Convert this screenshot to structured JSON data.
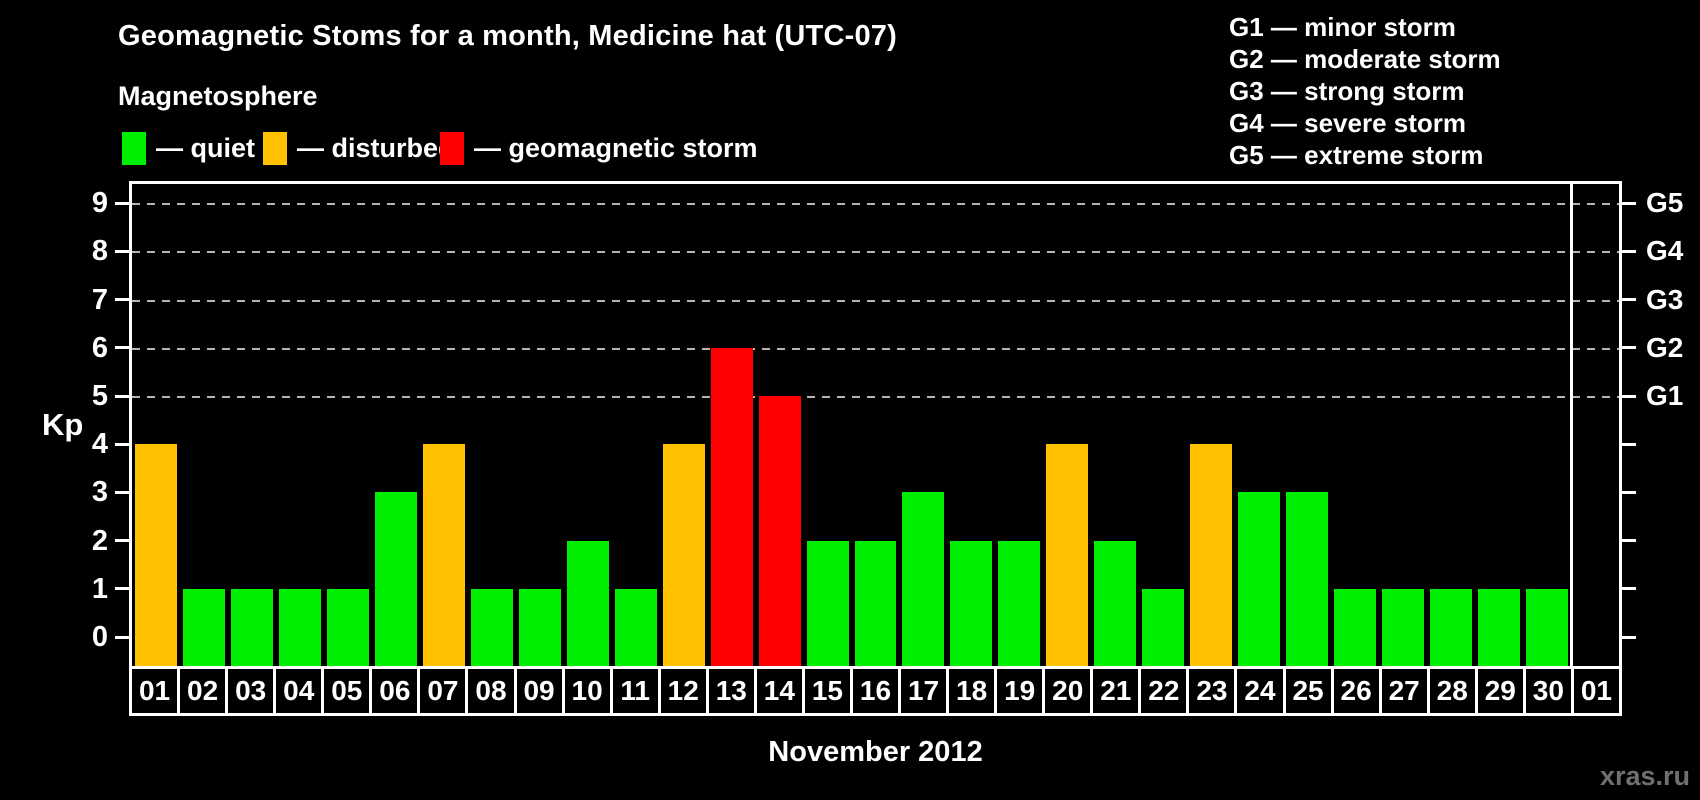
{
  "title": "Geomagnetic Stoms for a month, Medicine hat (UTC-07)",
  "magnetosphere_label": "Magnetosphere",
  "kp_legend": {
    "items": [
      {
        "name": "quiet",
        "label": "— quiet",
        "color": "#00ee00"
      },
      {
        "name": "disturbed",
        "label": "— disturbed",
        "color": "#ffc100"
      },
      {
        "name": "storm",
        "label": "— geomagnetic storm",
        "color": "#ff0000"
      }
    ]
  },
  "g_legend": {
    "items": [
      "G1 — minor storm",
      "G2 — moderate storm",
      "G3 — strong storm",
      "G4 — severe storm",
      "G5 — extreme storm"
    ]
  },
  "watermark": "xras.ru",
  "chart_data": {
    "type": "bar",
    "title": "Geomagnetic Stoms for a month, Medicine hat (UTC-07)",
    "subtitle": "Magnetosphere",
    "xlabel": "November 2012",
    "ylabel": "Kp",
    "ylim": [
      0,
      9
    ],
    "y_ticks_left": [
      0,
      1,
      2,
      3,
      4,
      5,
      6,
      7,
      8,
      9
    ],
    "grid_levels": [
      5,
      6,
      7,
      8,
      9
    ],
    "grid_style": "dashed horizontal lines at Kp 5 through 9",
    "legend_position": "top-left",
    "right_axis": [
      {
        "level": 5,
        "label": "G1"
      },
      {
        "level": 6,
        "label": "G2"
      },
      {
        "level": 7,
        "label": "G3"
      },
      {
        "level": 8,
        "label": "G4"
      },
      {
        "level": 9,
        "label": "G5"
      }
    ],
    "status_colors": {
      "quiet": "#00ee00",
      "disturbed": "#ffc100",
      "storm": "#ff0000"
    },
    "categories": [
      "01",
      "02",
      "03",
      "04",
      "05",
      "06",
      "07",
      "08",
      "09",
      "10",
      "11",
      "12",
      "13",
      "14",
      "15",
      "16",
      "17",
      "18",
      "19",
      "20",
      "21",
      "22",
      "23",
      "24",
      "25",
      "26",
      "27",
      "28",
      "29",
      "30",
      "01"
    ],
    "series": [
      {
        "name": "Kp index",
        "values": [
          4,
          1,
          1,
          1,
          1,
          3,
          4,
          1,
          1,
          2,
          1,
          4,
          6,
          5,
          2,
          2,
          3,
          2,
          2,
          4,
          2,
          1,
          4,
          3,
          3,
          1,
          1,
          1,
          1,
          1,
          null
        ]
      }
    ],
    "statuses": [
      "disturbed",
      "quiet",
      "quiet",
      "quiet",
      "quiet",
      "quiet",
      "disturbed",
      "quiet",
      "quiet",
      "quiet",
      "quiet",
      "disturbed",
      "storm",
      "storm",
      "quiet",
      "quiet",
      "quiet",
      "quiet",
      "quiet",
      "disturbed",
      "quiet",
      "quiet",
      "disturbed",
      "quiet",
      "quiet",
      "quiet",
      "quiet",
      "quiet",
      "quiet",
      "quiet",
      null
    ]
  }
}
